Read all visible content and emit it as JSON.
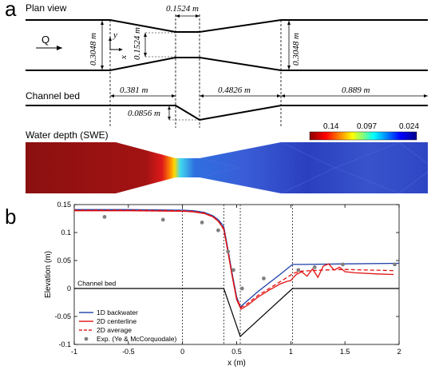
{
  "panel_a": {
    "letter": "a",
    "plan_view_label": "Plan view",
    "flow_label": "Q",
    "axis_y": "y",
    "axis_x": "x",
    "dim_throat_length": "0.1524 m",
    "dim_inlet_width": "0.3048 m",
    "dim_throat_width": "0.1524 m",
    "dim_outlet_width": "0.3048 m",
    "channel_bed_label": "Channel bed",
    "dim_upstream_length": "0.381 m",
    "dim_expansion_length": "0.4826 m",
    "dim_downstream_length": "0.889 m",
    "dim_drop": "0.0856 m",
    "water_depth_label": "Water depth (SWE)",
    "colorbar_ticks": [
      "0.14",
      "0.097",
      "0.024"
    ],
    "colorbar_colors": [
      "#8b0000",
      "#ff0000",
      "#ffff00",
      "#00ffff",
      "#0000ff",
      "#00008b"
    ]
  },
  "panel_b": {
    "letter": "b",
    "channel_bed_annotation": "Channel bed"
  },
  "chart_data": {
    "type": "line",
    "xlabel": "x (m)",
    "ylabel": "Elevation (m)",
    "xlim": [
      -1,
      2
    ],
    "ylim": [
      -0.1,
      0.15
    ],
    "xticks": [
      "-1",
      "-0.5",
      "0",
      "0.5",
      "1",
      "1.5",
      "2"
    ],
    "yticks": [
      "-0.1",
      "-0.05",
      "0",
      "0.05",
      "0.1",
      "0.15"
    ],
    "vlines": [
      0,
      0.381,
      0.5334,
      1.016
    ],
    "grid": false,
    "legend_position": "bottom-left",
    "series": [
      {
        "name": "1D backwater",
        "color": "#1f3fa8",
        "style": "solid",
        "x": [
          -1,
          -0.5,
          0,
          0.1,
          0.2,
          0.28,
          0.33,
          0.36,
          0.381,
          0.42,
          0.46,
          0.5,
          0.5334,
          0.7,
          0.9,
          1.016,
          1.1,
          1.5,
          2.0
        ],
        "y": [
          0.141,
          0.141,
          0.14,
          0.139,
          0.136,
          0.13,
          0.123,
          0.116,
          0.11,
          0.07,
          0.025,
          -0.015,
          -0.033,
          -0.005,
          0.025,
          0.043,
          0.043,
          0.044,
          0.045
        ]
      },
      {
        "name": "2D centerline",
        "color": "#e01010",
        "style": "solid",
        "x": [
          -1,
          -0.5,
          0,
          0.1,
          0.2,
          0.28,
          0.33,
          0.36,
          0.381,
          0.42,
          0.46,
          0.5,
          0.54,
          0.6,
          0.7,
          0.8,
          0.9,
          0.97,
          1.0,
          1.016,
          1.05,
          1.1,
          1.15,
          1.2,
          1.25,
          1.3,
          1.35,
          1.4,
          1.45,
          1.5,
          1.6,
          1.8,
          1.95
        ],
        "y": [
          0.139,
          0.139,
          0.138,
          0.137,
          0.134,
          0.128,
          0.12,
          0.112,
          0.105,
          0.065,
          0.02,
          -0.02,
          -0.037,
          -0.03,
          -0.015,
          -0.003,
          0.008,
          0.013,
          0.014,
          0.018,
          0.025,
          0.03,
          0.022,
          0.035,
          0.02,
          0.04,
          0.044,
          0.033,
          0.038,
          0.03,
          0.028,
          0.026,
          0.025
        ]
      },
      {
        "name": "2D average",
        "color": "#e01010",
        "style": "dashed",
        "x": [
          -1,
          -0.5,
          0,
          0.1,
          0.2,
          0.28,
          0.33,
          0.36,
          0.381,
          0.42,
          0.46,
          0.5,
          0.54,
          0.6,
          0.7,
          0.8,
          0.9,
          1.0,
          1.016,
          1.1,
          1.3,
          1.5,
          1.7,
          1.95
        ],
        "y": [
          0.14,
          0.14,
          0.139,
          0.138,
          0.135,
          0.129,
          0.121,
          0.113,
          0.107,
          0.068,
          0.022,
          -0.017,
          -0.034,
          -0.027,
          -0.012,
          0.0,
          0.012,
          0.024,
          0.027,
          0.031,
          0.033,
          0.034,
          0.033,
          0.032
        ]
      },
      {
        "name": "Exp. (Ye & McCorquodale)",
        "color": "#808080",
        "style": "marker",
        "x": [
          -0.72,
          -0.18,
          0.18,
          0.33,
          0.42,
          0.47,
          0.55,
          0.75,
          1.07,
          1.22,
          1.48,
          1.96
        ],
        "y": [
          0.128,
          0.123,
          0.118,
          0.104,
          0.066,
          0.033,
          0.0,
          0.018,
          0.033,
          0.038,
          0.043,
          0.043
        ]
      },
      {
        "name": "Channel bed",
        "color": "#000000",
        "style": "bed",
        "x": [
          -1,
          0.381,
          0.5334,
          1.016,
          2.0
        ],
        "y": [
          0,
          0,
          -0.0856,
          0,
          0
        ]
      }
    ]
  }
}
